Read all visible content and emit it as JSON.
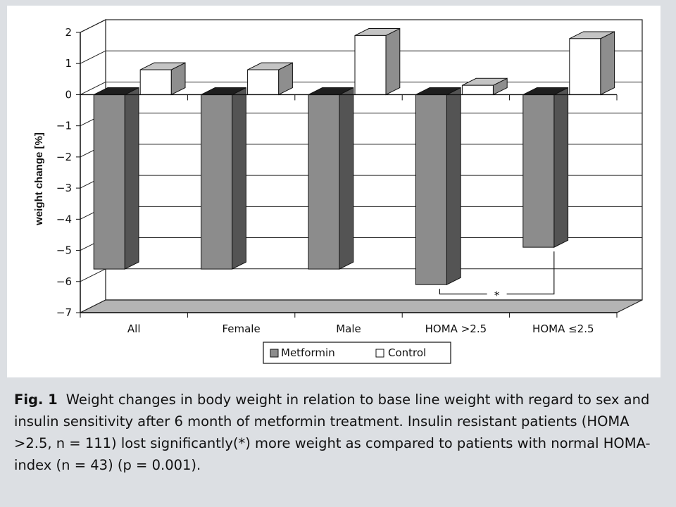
{
  "chart_data": {
    "type": "bar",
    "style": "3d-clustered",
    "categories": [
      "All",
      "Female",
      "Male",
      "HOMA >2.5",
      "HOMA ≤2.5"
    ],
    "series": [
      {
        "name": "Metformin",
        "values": [
          -5.6,
          -5.6,
          -5.6,
          -6.1,
          -4.9
        ],
        "color": "#8c8c8c"
      },
      {
        "name": "Control",
        "values": [
          0.8,
          0.8,
          1.9,
          0.3,
          1.8
        ],
        "color": "#ffffff"
      }
    ],
    "ylabel": "weight change [%]",
    "xlabel": "",
    "ylim": [
      -7,
      2
    ],
    "yticks": [
      2,
      1,
      0,
      -1,
      -2,
      -3,
      -4,
      -5,
      -6,
      -7
    ],
    "grid": true,
    "legend_position": "bottom-center",
    "significance_annotation": {
      "between": [
        "HOMA >2.5",
        "HOMA ≤2.5"
      ],
      "series": "Metformin",
      "text": "*"
    }
  },
  "caption": {
    "label": "Fig. 1",
    "text": "Weight changes in body weight in relation to base line weight with regard to sex and insulin sensitivity after 6 month of metformin treatment. Insulin resistant patients (HOMA >2.5, n = 111) lost significantly(*) more weight as compared to patients with normal HOMA-index (n = 43) (p = 0.001)."
  }
}
